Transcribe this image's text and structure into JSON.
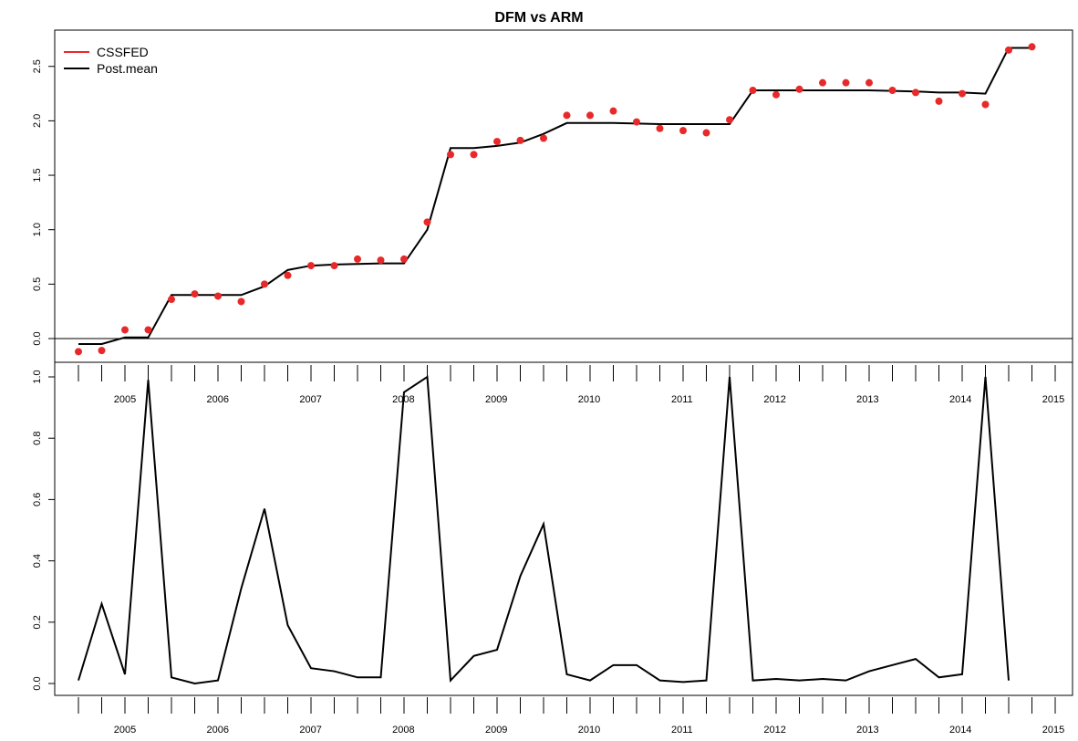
{
  "chart_data": [
    {
      "type": "line",
      "panel": "top",
      "title": "DFM vs ARM",
      "ylim": [
        -0.1,
        2.75
      ],
      "y_ticks": [
        "0.0",
        "0.5",
        "1.0",
        "1.5",
        "2.0",
        "2.5"
      ],
      "x_tick_labels": [
        "2005",
        "2006",
        "2007",
        "2008",
        "2009",
        "2010",
        "2011",
        "2012",
        "2013",
        "2014",
        "2015"
      ],
      "reference_line_y": 0,
      "legend": {
        "placement": "top-left",
        "entries": [
          {
            "label": "CSSFED",
            "color": "#e8292a"
          },
          {
            "label": "Post.mean",
            "color": "#000000"
          }
        ]
      },
      "series": [
        {
          "name": "CSSFED",
          "style": "points",
          "color": "#e8292a",
          "values": [
            -0.12,
            -0.11,
            0.08,
            0.08,
            0.36,
            0.41,
            0.39,
            0.34,
            0.5,
            0.58,
            0.67,
            0.67,
            0.73,
            0.72,
            0.73,
            1.07,
            1.69,
            1.69,
            1.81,
            1.82,
            1.84,
            2.05,
            2.05,
            2.09,
            1.99,
            1.93,
            1.91,
            1.89,
            2.01,
            2.28,
            2.24,
            2.29,
            2.35,
            2.35,
            2.35,
            2.28,
            2.26,
            2.18,
            2.25,
            2.15,
            2.65,
            2.68
          ]
        },
        {
          "name": "Post.mean",
          "style": "line",
          "color": "#000000",
          "values": [
            -0.05,
            -0.05,
            0.01,
            0.01,
            0.4,
            0.4,
            0.4,
            0.4,
            0.48,
            0.63,
            0.67,
            0.68,
            0.685,
            0.69,
            0.69,
            1.0,
            1.75,
            1.75,
            1.77,
            1.8,
            1.88,
            1.98,
            1.98,
            1.98,
            1.975,
            1.97,
            1.97,
            1.97,
            1.97,
            2.28,
            2.28,
            2.28,
            2.28,
            2.28,
            2.28,
            2.275,
            2.27,
            2.26,
            2.26,
            2.25,
            2.67,
            2.67
          ]
        }
      ]
    },
    {
      "type": "line",
      "panel": "bottom",
      "ylim": [
        -0.04,
        1.05
      ],
      "y_ticks": [
        "0.0",
        "0.2",
        "0.4",
        "0.6",
        "0.8",
        "1.0"
      ],
      "x_tick_labels": [
        "2005",
        "2006",
        "2007",
        "2008",
        "2009",
        "2010",
        "2011",
        "2012",
        "2013",
        "2014",
        "2015"
      ],
      "series": [
        {
          "style": "line",
          "color": "#000000",
          "values": [
            0.01,
            0.26,
            0.03,
            0.99,
            0.02,
            0.0,
            0.01,
            0.31,
            0.57,
            0.19,
            0.05,
            0.04,
            0.02,
            0.02,
            0.95,
            1.0,
            0.01,
            0.09,
            0.11,
            0.35,
            0.52,
            0.03,
            0.01,
            0.06,
            0.06,
            0.01,
            0.005,
            0.01,
            1.0,
            0.01,
            0.015,
            0.01,
            0.015,
            0.01,
            0.04,
            0.06,
            0.08,
            0.02,
            0.03,
            1.0,
            0.01
          ]
        }
      ]
    }
  ]
}
